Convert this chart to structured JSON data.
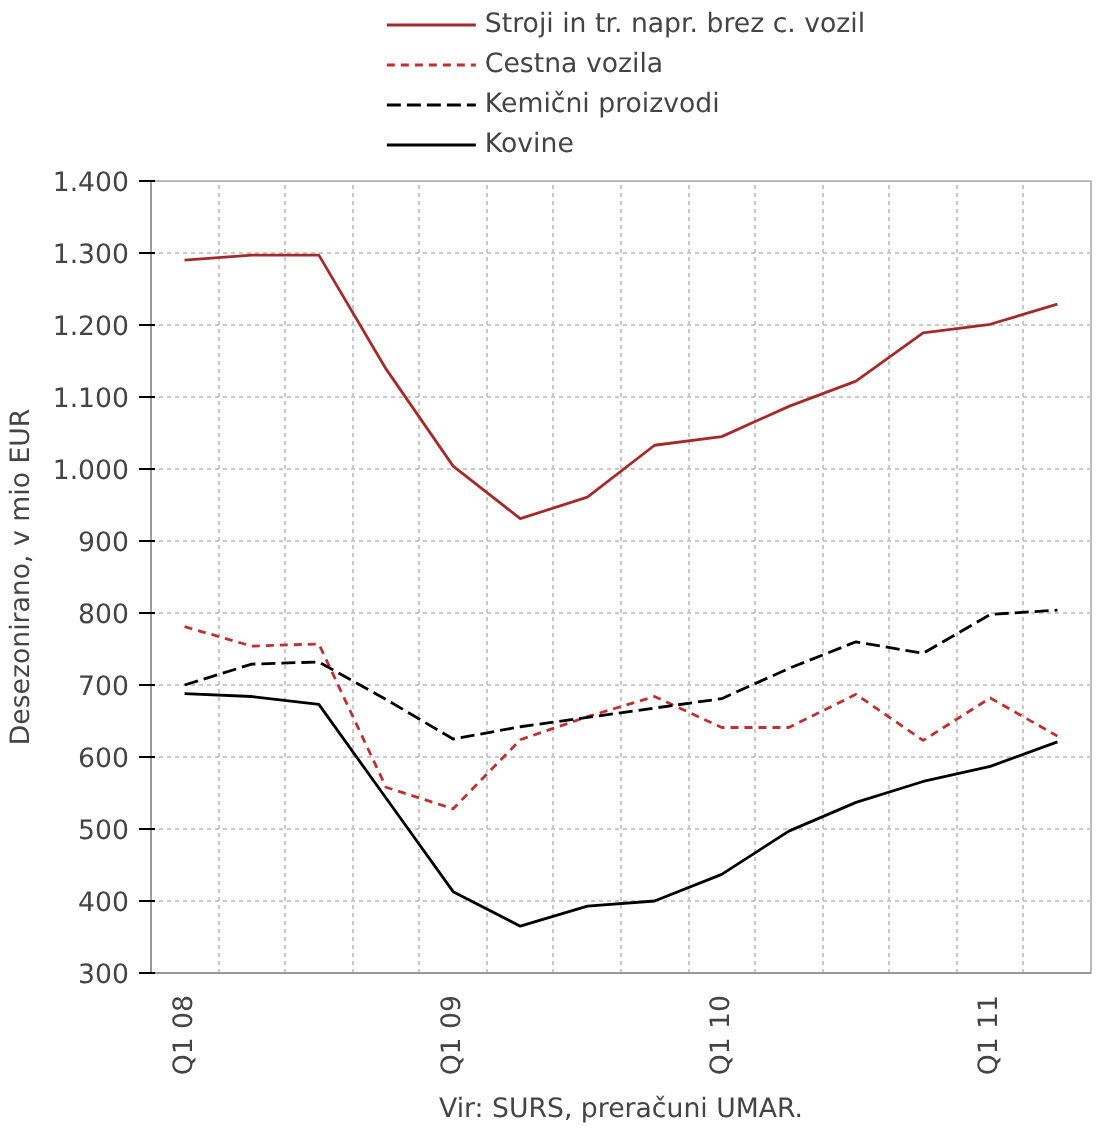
{
  "chart_data": {
    "type": "line",
    "ylabel": "Desezonirano, v mio EUR",
    "annotations": [
      "Vir: SURS, preračuni UMAR."
    ],
    "categories": [
      "Q1 08",
      null,
      null,
      null,
      "Q1 09",
      null,
      null,
      null,
      "Q1 10",
      null,
      null,
      null,
      "Q1 11",
      null
    ],
    "series": [
      {
        "name": "Stroji in tr. napr. brez c. vozil",
        "color": "#a52a2a",
        "line_style": "solid",
        "values": [
          1290,
          1297,
          1297,
          1139,
          1004,
          931,
          961,
          1033,
          1045,
          1087,
          1122,
          1189,
          1201,
          1229
        ]
      },
      {
        "name": "Cestna vozila",
        "color": "#c0302e",
        "line_style": "dotted",
        "values": [
          781,
          754,
          757,
          558,
          528,
          624,
          656,
          684,
          641,
          641,
          687,
          623,
          682,
          629
        ]
      },
      {
        "name": "Kemični proizvodi",
        "color": "#000000",
        "line_style": "dashed",
        "values": [
          700,
          729,
          732,
          680,
          625,
          642,
          655,
          668,
          681,
          723,
          760,
          744,
          798,
          804
        ]
      },
      {
        "name": "Kovine",
        "color": "#000000",
        "line_style": "solid",
        "values": [
          688,
          684,
          673,
          543,
          413,
          365,
          393,
          400,
          437,
          497,
          537,
          566,
          587,
          621
        ]
      }
    ],
    "ylim": [
      300,
      1400
    ],
    "yticks": [
      300,
      400,
      500,
      600,
      700,
      800,
      900,
      {
        "value": 1000,
        "label": "1.000"
      },
      {
        "value": 1100,
        "label": "1.100"
      },
      {
        "value": 1200,
        "label": "1.200"
      },
      {
        "value": 1300,
        "label": "1.300"
      },
      {
        "value": 1400,
        "label": "1.400"
      }
    ],
    "grid": true,
    "legend": "top",
    "marker": "none"
  }
}
